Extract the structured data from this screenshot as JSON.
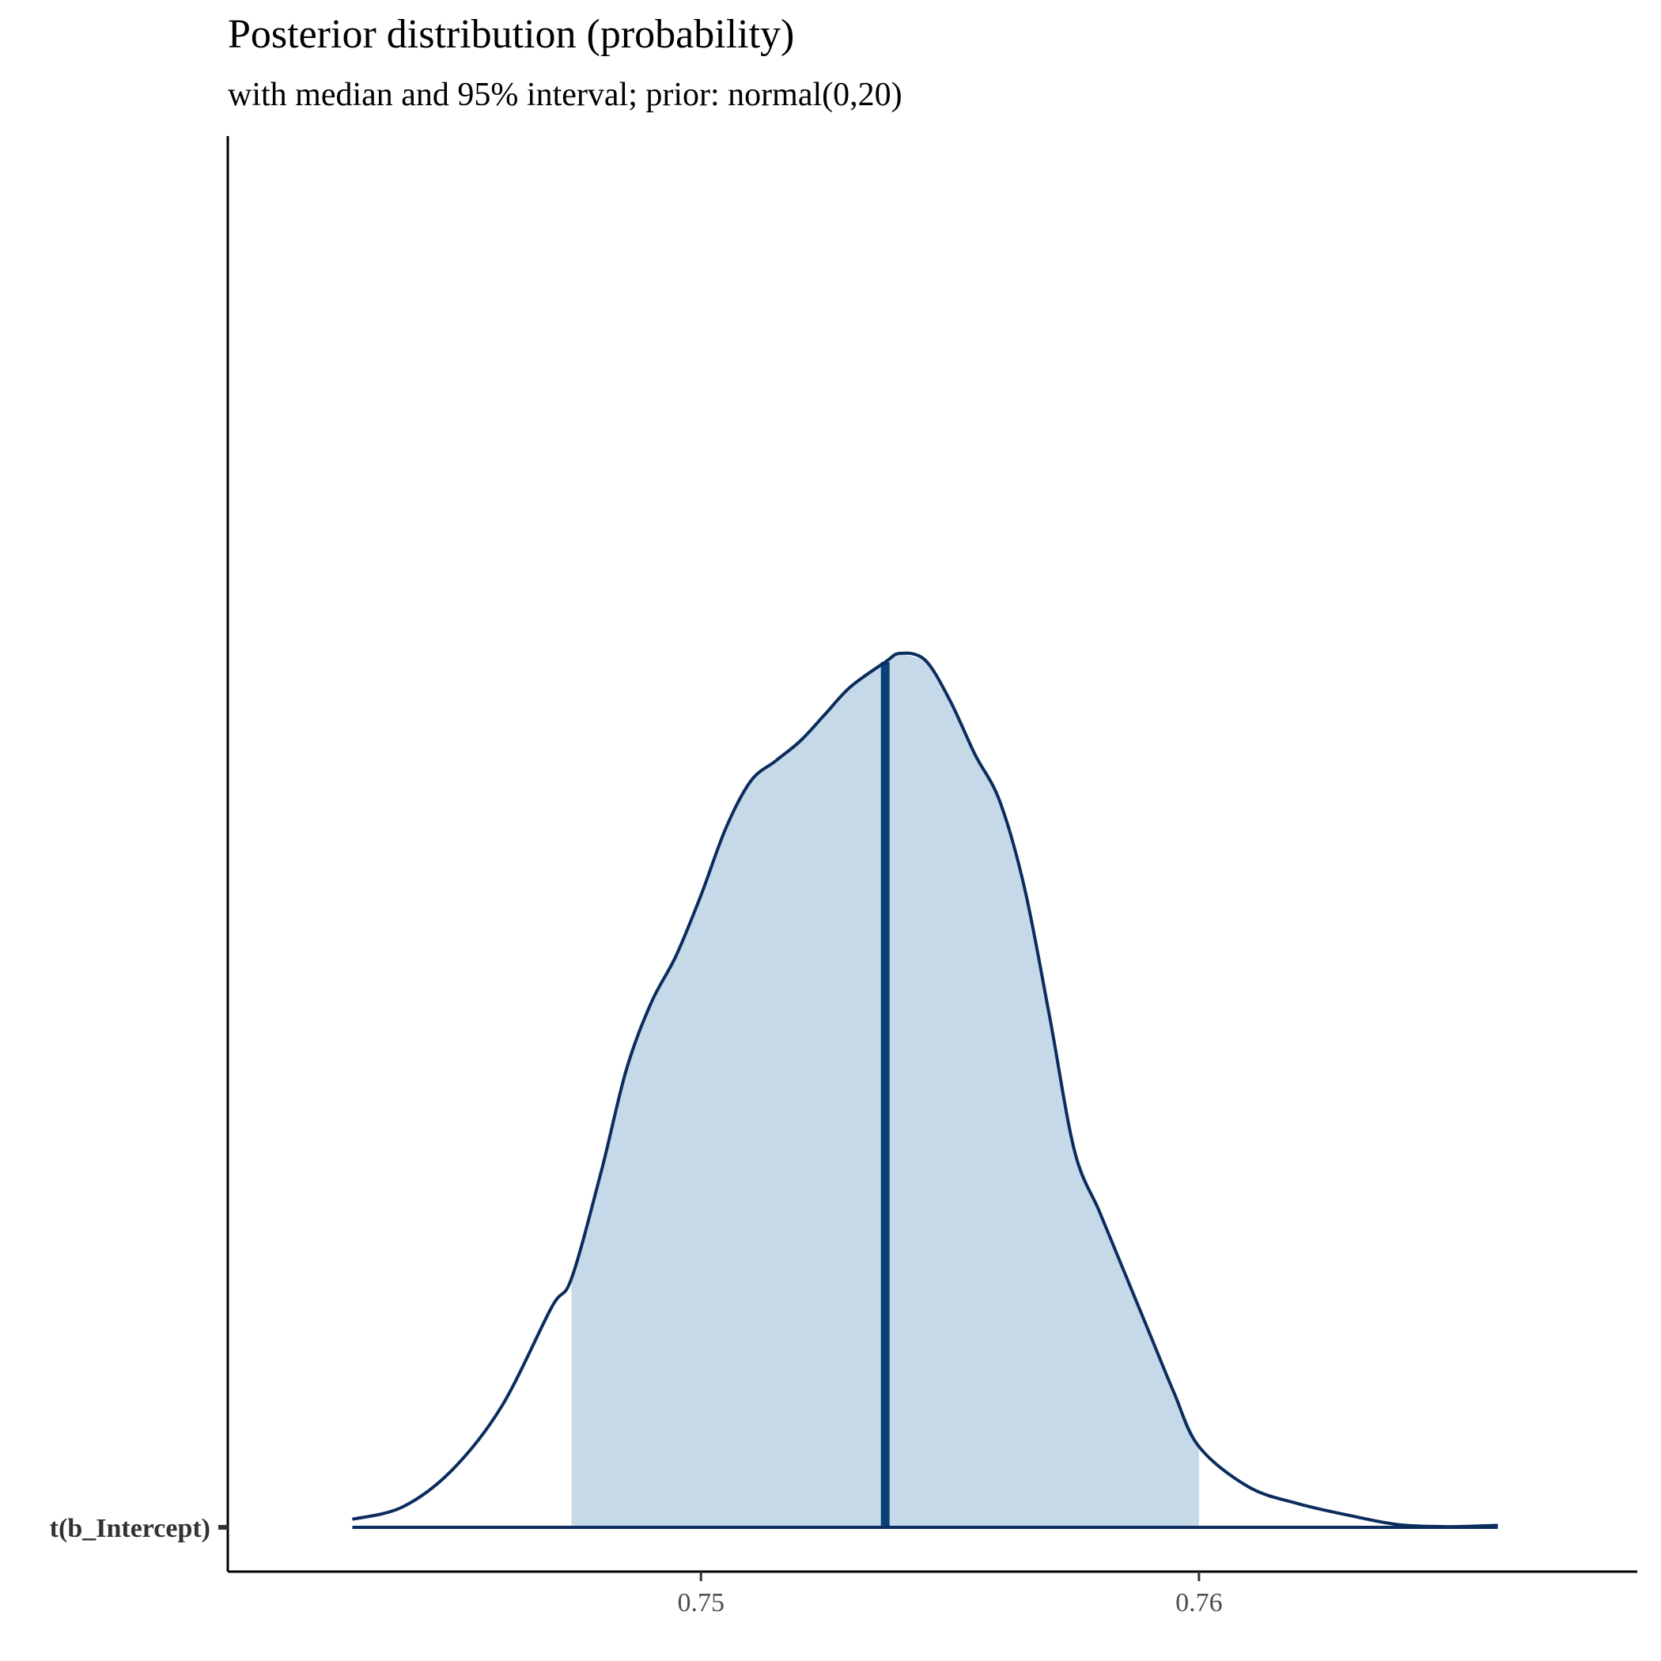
{
  "chart_data": {
    "type": "area",
    "title": "Posterior distribution (probability)",
    "subtitle": "with median and 95% interval; prior: normal(0,20)",
    "xlabel": "",
    "ylabel": "",
    "parameter": "t(b_Intercept)",
    "xlim": [
      0.7405,
      0.7688
    ],
    "x_ticks": [
      0.75,
      0.76
    ],
    "x_tick_labels": [
      "0.75",
      "0.76"
    ],
    "median": 0.7537,
    "interval_95": [
      0.7474,
      0.76
    ],
    "grid": false,
    "density": {
      "x": [
        0.743,
        0.744,
        0.745,
        0.746,
        0.747,
        0.7474,
        0.748,
        0.7485,
        0.749,
        0.7495,
        0.75,
        0.7505,
        0.751,
        0.7515,
        0.752,
        0.7525,
        0.753,
        0.7537,
        0.754,
        0.7545,
        0.755,
        0.7555,
        0.756,
        0.7565,
        0.757,
        0.7575,
        0.758,
        0.7585,
        0.759,
        0.7595,
        0.76,
        0.761,
        0.762,
        0.763,
        0.764,
        0.765,
        0.766
      ],
      "y": [
        0.012,
        0.03,
        0.085,
        0.18,
        0.327,
        0.37,
        0.53,
        0.68,
        0.78,
        0.85,
        0.94,
        1.04,
        1.11,
        1.14,
        1.17,
        1.21,
        1.25,
        1.287,
        1.3,
        1.29,
        1.23,
        1.15,
        1.08,
        0.95,
        0.76,
        0.56,
        0.47,
        0.38,
        0.29,
        0.2,
        0.12,
        0.06,
        0.035,
        0.018,
        0.004,
        0.001,
        0.003
      ]
    },
    "colors": {
      "fill": "#c6d9e9",
      "outline": "#0b2d5e",
      "median_line": "#0a3f78",
      "axis": "#000000"
    }
  }
}
